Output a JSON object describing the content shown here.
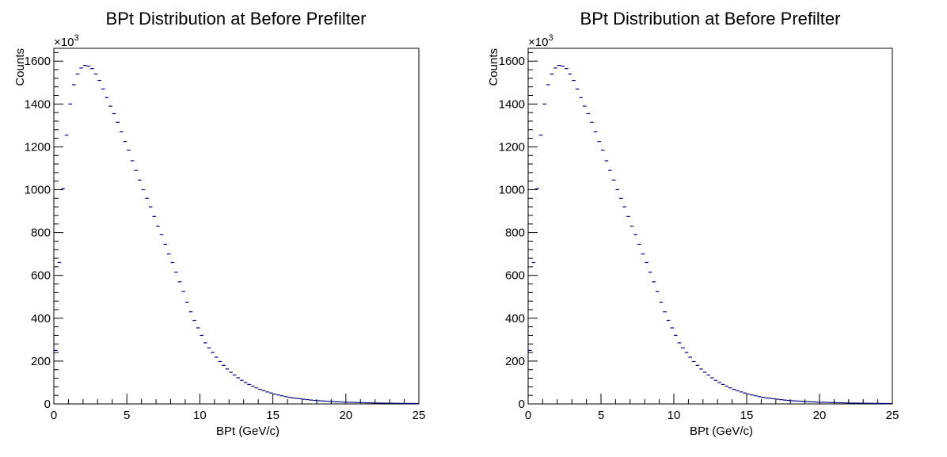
{
  "chart_data": [
    {
      "type": "histogram",
      "title": "BPt Distribution at Before Prefilter",
      "xlabel": "BPt (GeV/c)",
      "ylabel": "Counts",
      "y_multiplier": "×10",
      "y_multiplier_exp": "3",
      "xlim": [
        0,
        25
      ],
      "ylim": [
        0,
        1660
      ],
      "x_ticks": [
        "0",
        "5",
        "10",
        "15",
        "20",
        "25"
      ],
      "y_ticks": [
        "0",
        "200",
        "400",
        "600",
        "800",
        "1000",
        "1200",
        "1400",
        "1600"
      ],
      "grid": false,
      "bin_width": 0.25,
      "bin_edges_start": 0,
      "values": [
        250,
        660,
        1005,
        1255,
        1400,
        1490,
        1540,
        1568,
        1580,
        1577,
        1565,
        1540,
        1510,
        1470,
        1430,
        1390,
        1355,
        1315,
        1270,
        1225,
        1185,
        1135,
        1090,
        1045,
        1000,
        960,
        920,
        875,
        830,
        790,
        745,
        700,
        660,
        615,
        570,
        525,
        475,
        430,
        390,
        355,
        320,
        285,
        262,
        240,
        218,
        198,
        180,
        163,
        148,
        135,
        122,
        110,
        100,
        91,
        83,
        75,
        68,
        62,
        56,
        51,
        46,
        42,
        38,
        34,
        31,
        28,
        26,
        24,
        22,
        20,
        18,
        16.5,
        15,
        14,
        13,
        12,
        11,
        10,
        9.3,
        8.6,
        8,
        7.4,
        6.8,
        6.3,
        5.8,
        5.4,
        5,
        4.6,
        4.3,
        4,
        3.7,
        3.4,
        3.2,
        3,
        2.8,
        2.6,
        2.4,
        2.2,
        2.1,
        2
      ]
    },
    {
      "type": "histogram",
      "title": "BPt Distribution at Before Prefilter",
      "xlabel": "BPt (GeV/c)",
      "ylabel": "Counts",
      "y_multiplier": "×10",
      "y_multiplier_exp": "3",
      "xlim": [
        0,
        25
      ],
      "ylim": [
        0,
        1660
      ],
      "x_ticks": [
        "0",
        "5",
        "10",
        "15",
        "20",
        "25"
      ],
      "y_ticks": [
        "0",
        "200",
        "400",
        "600",
        "800",
        "1000",
        "1200",
        "1400",
        "1600"
      ],
      "grid": false,
      "bin_width": 0.25,
      "bin_edges_start": 0,
      "values": [
        250,
        660,
        1005,
        1255,
        1400,
        1490,
        1540,
        1568,
        1580,
        1577,
        1565,
        1540,
        1510,
        1470,
        1430,
        1390,
        1355,
        1315,
        1270,
        1225,
        1185,
        1135,
        1090,
        1045,
        1000,
        960,
        920,
        875,
        830,
        790,
        745,
        700,
        660,
        615,
        570,
        525,
        475,
        430,
        390,
        355,
        320,
        285,
        262,
        240,
        218,
        198,
        180,
        163,
        148,
        135,
        122,
        110,
        100,
        91,
        83,
        75,
        68,
        62,
        56,
        51,
        46,
        42,
        38,
        34,
        31,
        28,
        26,
        24,
        22,
        20,
        18,
        16.5,
        15,
        14,
        13,
        12,
        11,
        10,
        9.3,
        8.6,
        8,
        7.4,
        6.8,
        6.3,
        5.8,
        5.4,
        5,
        4.6,
        4.3,
        4,
        3.7,
        3.4,
        3.2,
        3,
        2.8,
        2.6,
        2.4,
        2.2,
        2.1,
        2
      ]
    }
  ]
}
